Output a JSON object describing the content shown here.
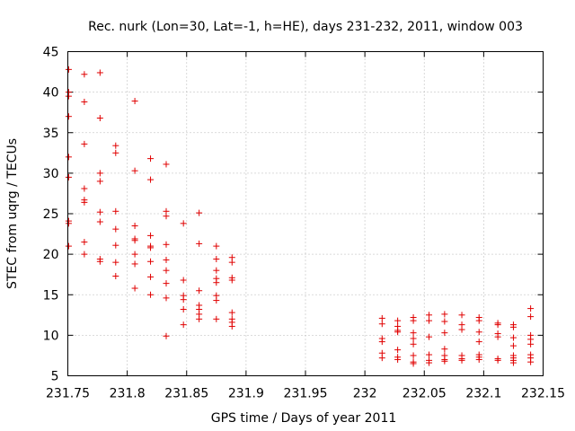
{
  "chart_data": {
    "type": "scatter",
    "title": "Rec. nurk (Lon=30, Lat=-1, h=HE), days 231-232, 2011, window 003",
    "xlabel": "GPS time / Days of year 2011",
    "ylabel": "STEC from uqrg / TECUs",
    "xlim": [
      231.75,
      232.15
    ],
    "ylim": [
      5,
      45
    ],
    "xticks": [
      231.75,
      231.8,
      231.85,
      231.9,
      231.95,
      232,
      232.05,
      232.1,
      232.15
    ],
    "xtick_labels": [
      "231.75",
      "231.8",
      "231.85",
      "231.9",
      "231.95",
      "232",
      "232.05",
      "232.1",
      "232.15"
    ],
    "yticks": [
      5,
      10,
      15,
      20,
      25,
      30,
      35,
      40,
      45
    ],
    "ytick_labels": [
      "5",
      "10",
      "15",
      "20",
      "25",
      "30",
      "35",
      "40",
      "45"
    ],
    "grid": true,
    "marker": "+",
    "color": "#e00000",
    "series": [
      {
        "name": "STEC",
        "points": [
          [
            231.7507,
            42.8
          ],
          [
            231.7507,
            40.0
          ],
          [
            231.7507,
            39.5
          ],
          [
            231.7507,
            37.0
          ],
          [
            231.7507,
            32.0
          ],
          [
            231.7507,
            29.5
          ],
          [
            231.7507,
            24.1
          ],
          [
            231.7507,
            23.8
          ],
          [
            231.7507,
            21.0
          ],
          [
            231.7639,
            42.2
          ],
          [
            231.7639,
            38.8
          ],
          [
            231.7639,
            33.6
          ],
          [
            231.7639,
            28.1
          ],
          [
            231.7639,
            26.7
          ],
          [
            231.7639,
            26.4
          ],
          [
            231.7639,
            21.5
          ],
          [
            231.7639,
            20.0
          ],
          [
            231.7771,
            42.4
          ],
          [
            231.7771,
            36.8
          ],
          [
            231.7771,
            30.0
          ],
          [
            231.7771,
            29.0
          ],
          [
            231.7771,
            25.2
          ],
          [
            231.7771,
            24.0
          ],
          [
            231.7771,
            19.4
          ],
          [
            231.7771,
            19.1
          ],
          [
            231.7903,
            33.4
          ],
          [
            231.7903,
            32.5
          ],
          [
            231.7903,
            25.3
          ],
          [
            231.7903,
            23.1
          ],
          [
            231.7903,
            21.1
          ],
          [
            231.7903,
            19.0
          ],
          [
            231.7903,
            17.3
          ],
          [
            231.8064,
            38.9
          ],
          [
            231.8064,
            30.3
          ],
          [
            231.8064,
            23.5
          ],
          [
            231.8064,
            21.9
          ],
          [
            231.8064,
            21.7
          ],
          [
            231.8064,
            20.0
          ],
          [
            231.8064,
            18.8
          ],
          [
            231.8064,
            15.8
          ],
          [
            231.8196,
            31.8
          ],
          [
            231.8196,
            29.2
          ],
          [
            231.8196,
            22.3
          ],
          [
            231.8196,
            21.0
          ],
          [
            231.8196,
            20.8
          ],
          [
            231.8196,
            19.1
          ],
          [
            231.8196,
            17.2
          ],
          [
            231.8196,
            15.0
          ],
          [
            231.8328,
            31.1
          ],
          [
            231.8328,
            25.3
          ],
          [
            231.8328,
            24.7
          ],
          [
            231.8328,
            21.2
          ],
          [
            231.8328,
            19.3
          ],
          [
            231.8328,
            18.0
          ],
          [
            231.8328,
            16.4
          ],
          [
            231.8328,
            14.6
          ],
          [
            231.8328,
            9.9
          ],
          [
            231.8473,
            23.8
          ],
          [
            231.8473,
            16.8
          ],
          [
            231.8473,
            14.9
          ],
          [
            231.8473,
            14.4
          ],
          [
            231.8473,
            13.2
          ],
          [
            231.8473,
            11.3
          ],
          [
            231.8605,
            25.1
          ],
          [
            231.8605,
            21.3
          ],
          [
            231.8605,
            15.5
          ],
          [
            231.8605,
            13.7
          ],
          [
            231.8605,
            13.2
          ],
          [
            231.8605,
            12.6
          ],
          [
            231.8605,
            12.0
          ],
          [
            231.875,
            21.0
          ],
          [
            231.875,
            19.4
          ],
          [
            231.875,
            18.0
          ],
          [
            231.875,
            17.0
          ],
          [
            231.875,
            16.5
          ],
          [
            231.875,
            14.9
          ],
          [
            231.875,
            14.3
          ],
          [
            231.875,
            12.0
          ],
          [
            231.8882,
            19.6
          ],
          [
            231.8882,
            19.0
          ],
          [
            231.8882,
            17.1
          ],
          [
            231.8882,
            16.8
          ],
          [
            231.8882,
            12.8
          ],
          [
            231.8882,
            12.0
          ],
          [
            231.8882,
            11.6
          ],
          [
            231.8882,
            11.1
          ],
          [
            232.0145,
            12.1
          ],
          [
            232.0145,
            11.4
          ],
          [
            232.0145,
            9.6
          ],
          [
            232.0145,
            9.2
          ],
          [
            232.0145,
            7.8
          ],
          [
            232.0145,
            7.2
          ],
          [
            232.0276,
            11.8
          ],
          [
            232.0276,
            11.1
          ],
          [
            232.0276,
            10.6
          ],
          [
            232.0276,
            10.4
          ],
          [
            232.0276,
            8.2
          ],
          [
            232.0276,
            7.3
          ],
          [
            232.0276,
            7.0
          ],
          [
            232.0408,
            12.2
          ],
          [
            232.0408,
            11.8
          ],
          [
            232.0408,
            10.3
          ],
          [
            232.0408,
            9.6
          ],
          [
            232.0408,
            8.9
          ],
          [
            232.0408,
            7.5
          ],
          [
            232.0408,
            6.7
          ],
          [
            232.0408,
            6.5
          ],
          [
            232.054,
            12.5
          ],
          [
            232.054,
            11.8
          ],
          [
            232.054,
            9.8
          ],
          [
            232.054,
            7.6
          ],
          [
            232.054,
            6.9
          ],
          [
            232.054,
            6.6
          ],
          [
            232.0671,
            12.6
          ],
          [
            232.0671,
            11.7
          ],
          [
            232.0671,
            10.3
          ],
          [
            232.0671,
            8.3
          ],
          [
            232.0671,
            7.5
          ],
          [
            232.0671,
            7.0
          ],
          [
            232.0671,
            6.8
          ],
          [
            232.0816,
            12.5
          ],
          [
            232.0816,
            11.3
          ],
          [
            232.0816,
            10.7
          ],
          [
            232.0816,
            7.5
          ],
          [
            232.0816,
            7.1
          ],
          [
            232.0816,
            6.9
          ],
          [
            232.0961,
            12.2
          ],
          [
            232.0961,
            11.8
          ],
          [
            232.0961,
            10.4
          ],
          [
            232.0961,
            9.2
          ],
          [
            232.0961,
            7.6
          ],
          [
            232.0961,
            7.3
          ],
          [
            232.0961,
            7.0
          ],
          [
            232.1119,
            11.5
          ],
          [
            232.1119,
            11.3
          ],
          [
            232.1119,
            10.2
          ],
          [
            232.1119,
            9.8
          ],
          [
            232.1119,
            7.1
          ],
          [
            232.1119,
            6.9
          ],
          [
            232.125,
            11.3
          ],
          [
            232.125,
            11.0
          ],
          [
            232.125,
            9.7
          ],
          [
            232.125,
            8.7
          ],
          [
            232.125,
            7.5
          ],
          [
            232.125,
            7.2
          ],
          [
            232.125,
            6.9
          ],
          [
            232.125,
            6.6
          ],
          [
            232.1395,
            13.3
          ],
          [
            232.1395,
            12.3
          ],
          [
            232.1395,
            10.0
          ],
          [
            232.1395,
            9.5
          ],
          [
            232.1395,
            8.9
          ],
          [
            232.1395,
            7.6
          ],
          [
            232.1395,
            7.2
          ],
          [
            232.1395,
            6.7
          ]
        ]
      }
    ]
  }
}
